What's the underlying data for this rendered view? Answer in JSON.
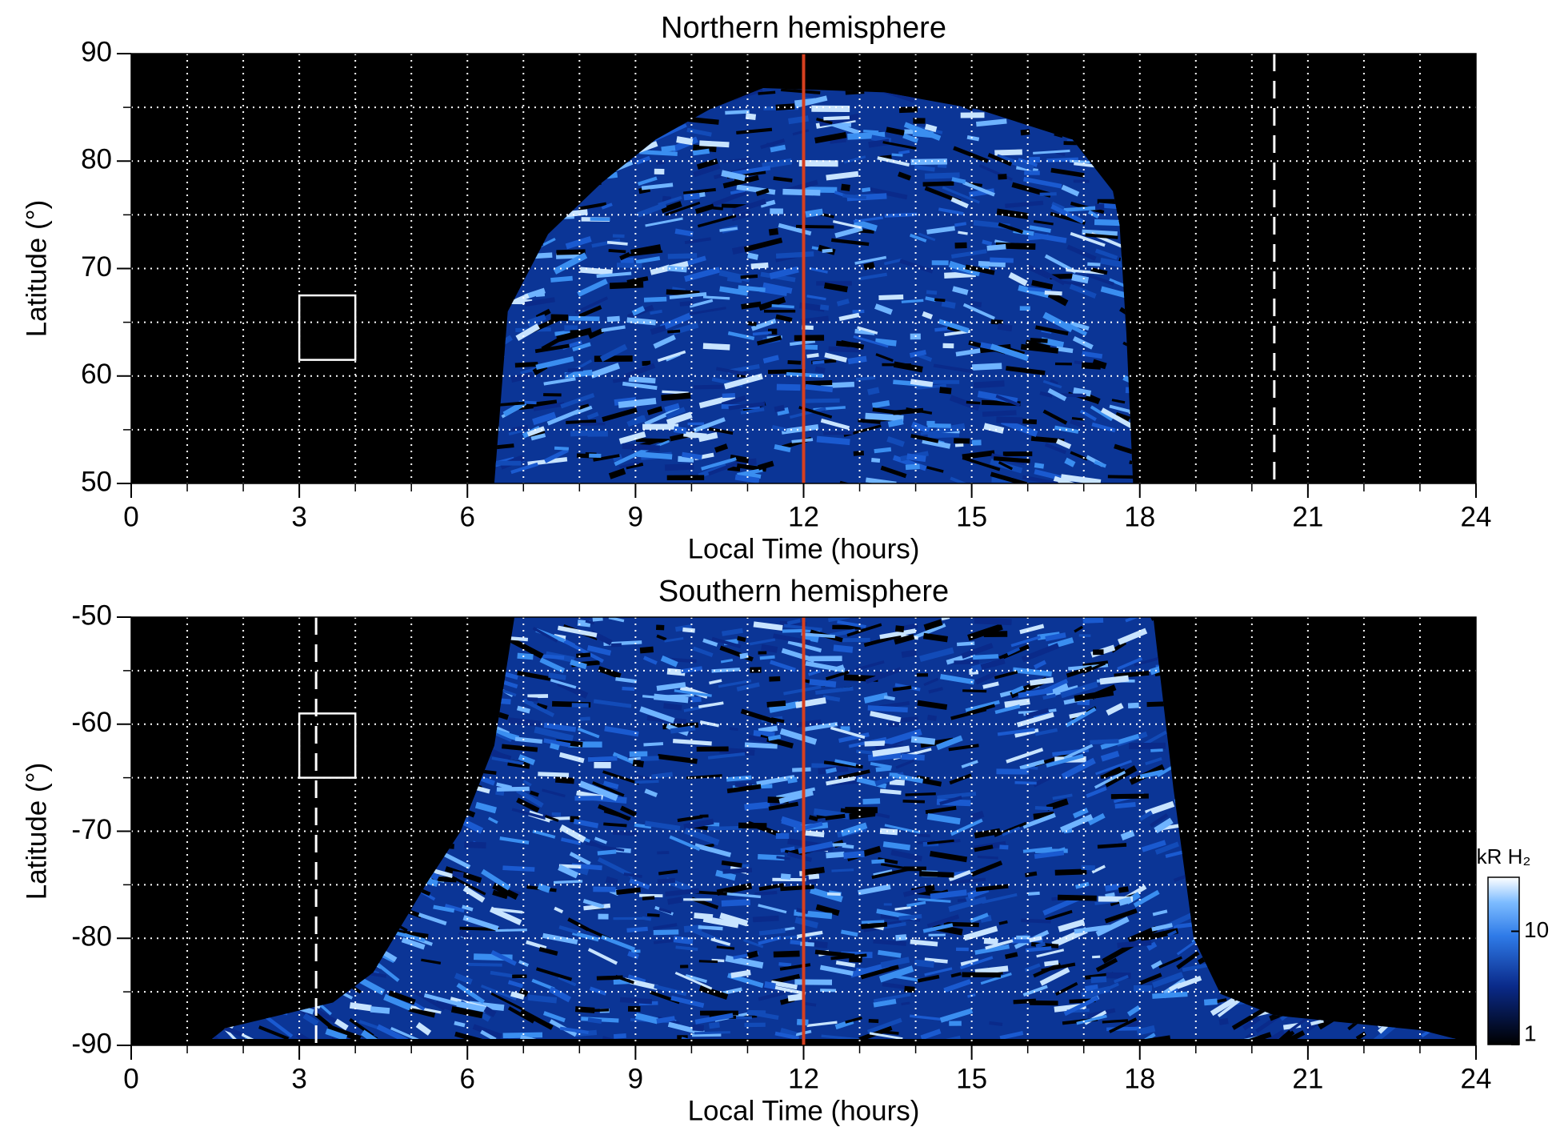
{
  "chart_data": [
    {
      "type": "image-map",
      "title": "Northern hemisphere",
      "xlabel": "Local Time (hours)",
      "ylabel": "Latitude (°)",
      "xlim": [
        0,
        24
      ],
      "xticks": [
        0,
        3,
        6,
        9,
        12,
        15,
        18,
        21,
        24
      ],
      "ylim": [
        50,
        90
      ],
      "yticks": [
        50,
        60,
        70,
        80,
        90
      ],
      "grid": true,
      "xgrid": [
        1,
        2,
        3,
        4,
        5,
        6,
        7,
        8,
        9,
        10,
        11,
        12,
        13,
        14,
        15,
        16,
        17,
        18,
        19,
        20,
        21,
        22,
        23
      ],
      "ygrid": [
        55,
        60,
        65,
        70,
        75,
        80,
        85
      ],
      "noon_line": {
        "x": 12,
        "color": "#d6401f"
      },
      "dashed_line": {
        "x": 20.4
      },
      "box": {
        "x": [
          3,
          4
        ],
        "y": [
          61.5,
          67.5
        ]
      }
    },
    {
      "type": "image-map",
      "title": "Southern hemisphere",
      "xlabel": "Local Time (hours)",
      "ylabel": "Latitude (°)",
      "xlim": [
        0,
        24
      ],
      "xticks": [
        0,
        3,
        6,
        9,
        12,
        15,
        18,
        21,
        24
      ],
      "ylim": [
        -90,
        -50
      ],
      "yticks": [
        -90,
        -80,
        -70,
        -60,
        -50
      ],
      "grid": true,
      "xgrid": [
        1,
        2,
        3,
        4,
        5,
        6,
        7,
        8,
        9,
        10,
        11,
        12,
        13,
        14,
        15,
        16,
        17,
        18,
        19,
        20,
        21,
        22,
        23
      ],
      "ygrid": [
        -85,
        -80,
        -75,
        -70,
        -65,
        -60,
        -55
      ],
      "noon_line": {
        "x": 12,
        "color": "#d6401f"
      },
      "dashed_line": {
        "x": 3.3
      },
      "box": {
        "x": [
          3,
          4
        ],
        "y": [
          -65,
          -59
        ]
      },
      "colorbar": {
        "label": "kR H₂",
        "scale": "log",
        "lim": [
          1,
          30
        ],
        "ticks": [
          1,
          10
        ]
      }
    }
  ]
}
